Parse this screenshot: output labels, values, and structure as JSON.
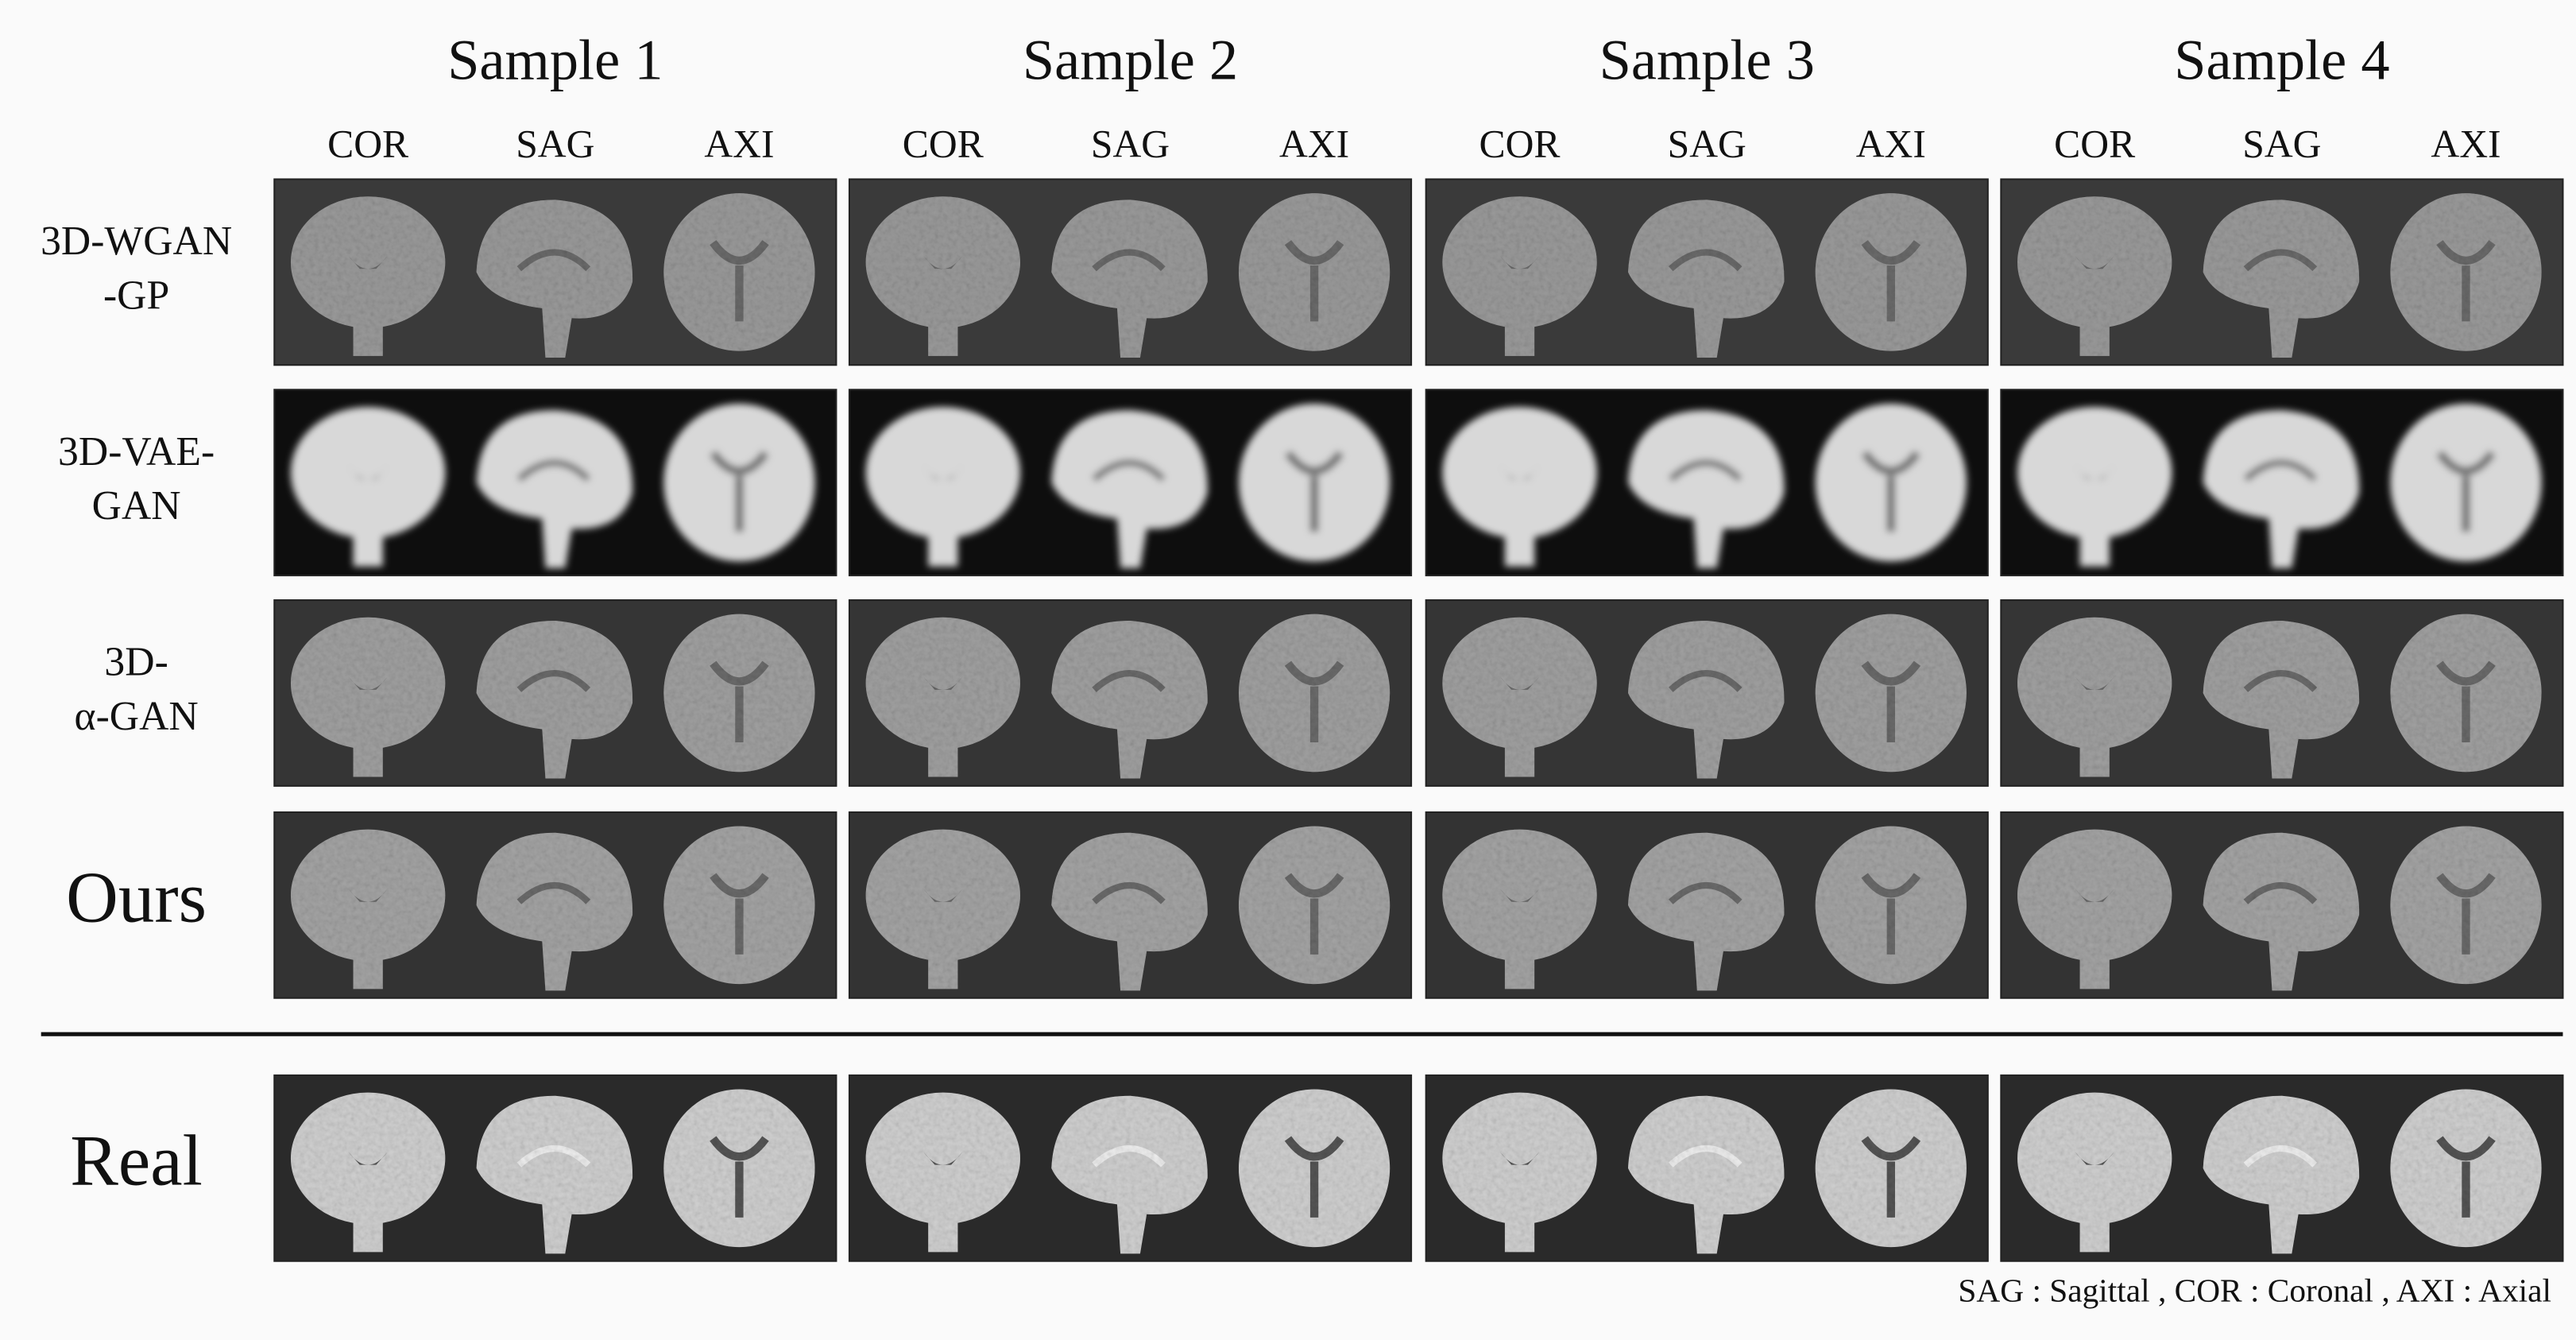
{
  "samples": [
    {
      "title": "Sample 1",
      "views": [
        "COR",
        "SAG",
        "AXI"
      ]
    },
    {
      "title": "Sample 2",
      "views": [
        "COR",
        "SAG",
        "AXI"
      ]
    },
    {
      "title": "Sample 3",
      "views": [
        "COR",
        "SAG",
        "AXI"
      ]
    },
    {
      "title": "Sample 4",
      "views": [
        "COR",
        "SAG",
        "AXI"
      ]
    }
  ],
  "rows": [
    {
      "label": [
        "3D-WGAN",
        "-GP"
      ]
    },
    {
      "label": [
        "3D-VAE-",
        "GAN"
      ]
    },
    {
      "label": [
        "3D-",
        "α-GAN"
      ]
    },
    {
      "label": [
        "Ours"
      ]
    },
    {
      "label": [
        "Real"
      ]
    }
  ],
  "footnote": "SAG : Sagittal  ,  COR : Coronal ,  AXI : Axial"
}
